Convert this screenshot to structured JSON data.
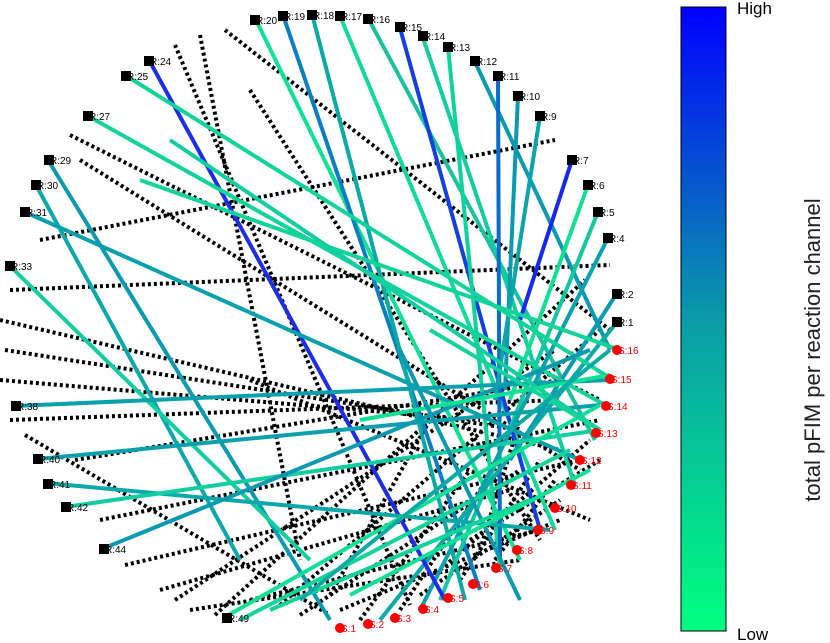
{
  "colorbar": {
    "high_label": "High",
    "low_label": "Low",
    "title": "total pFIM per reaction channel",
    "high_color": "#0000ff",
    "low_color": "#00ff80"
  },
  "reaction_labels": [
    "R:20",
    "R:19",
    "R:18",
    "R:17",
    "R:16",
    "R:15",
    "R:14",
    "R:13",
    "R:12",
    "R:11",
    "R:10",
    "R:9",
    "R:7",
    "R:6",
    "R:5",
    "R:4",
    "R:2",
    "R:1",
    "R:24",
    "R:25",
    "R:27",
    "R:29",
    "R:30",
    "R:31",
    "R:33",
    "R:38",
    "R:40",
    "R:41",
    "R:42",
    "R:44",
    "R:49"
  ],
  "species_labels": [
    "S:16",
    "S:15",
    "S:14",
    "S:13",
    "S:12",
    "S:11",
    "S:10",
    "S:9",
    "S:8",
    "S:7",
    "S:6",
    "S:5",
    "S:4",
    "S:3",
    "S:2",
    "S:1"
  ],
  "styles": {
    "reaction_marker_color": "#000000",
    "species_marker_color": "#ff0000",
    "dotted_line_color": "#000000"
  }
}
